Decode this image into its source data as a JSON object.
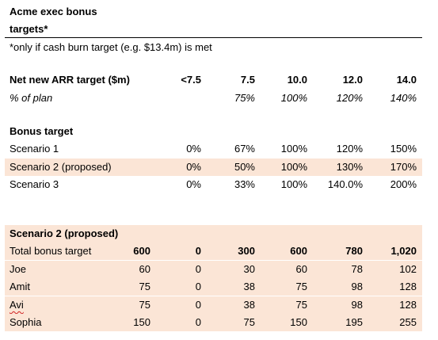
{
  "title": {
    "line1": "Acme exec bonus",
    "line2": "targets*"
  },
  "note": "*only if cash burn target (e.g. $13.4m) is met",
  "arr_table": {
    "header_label": "Net new ARR target ($m)",
    "header_values": [
      "<7.5",
      "7.5",
      "10.0",
      "12.0",
      "14.0"
    ],
    "plan_label": "% of plan",
    "plan_values": [
      "",
      "75%",
      "100%",
      "120%",
      "140%"
    ]
  },
  "bonus_table": {
    "header": "Bonus target",
    "scenarios": [
      {
        "label": "Scenario 1",
        "values": [
          "0%",
          "67%",
          "100%",
          "120%",
          "150%"
        ]
      },
      {
        "label": "Scenario 2 (proposed)",
        "values": [
          "0%",
          "50%",
          "100%",
          "130%",
          "170%"
        ]
      },
      {
        "label": "Scenario 3",
        "values": [
          "0%",
          "33%",
          "100%",
          "140.0%",
          "200%"
        ]
      }
    ]
  },
  "scenario2_table": {
    "header": "Scenario 2 (proposed)",
    "total": {
      "label": "Total bonus target",
      "base": "600",
      "values": [
        "0",
        "300",
        "600",
        "780",
        "1,020"
      ]
    },
    "people": [
      {
        "label": "Joe",
        "base": "60",
        "values": [
          "0",
          "30",
          "60",
          "78",
          "102"
        ]
      },
      {
        "label": "Amit",
        "base": "75",
        "values": [
          "0",
          "38",
          "75",
          "98",
          "128"
        ]
      },
      {
        "label": "Avi",
        "base": "75",
        "values": [
          "0",
          "38",
          "75",
          "98",
          "128"
        ]
      },
      {
        "label": "Sophia",
        "base": "150",
        "values": [
          "0",
          "75",
          "150",
          "195",
          "255"
        ]
      }
    ]
  },
  "colors": {
    "highlight": "#fbe5d6",
    "spellcheck_underline": "#d02020"
  }
}
